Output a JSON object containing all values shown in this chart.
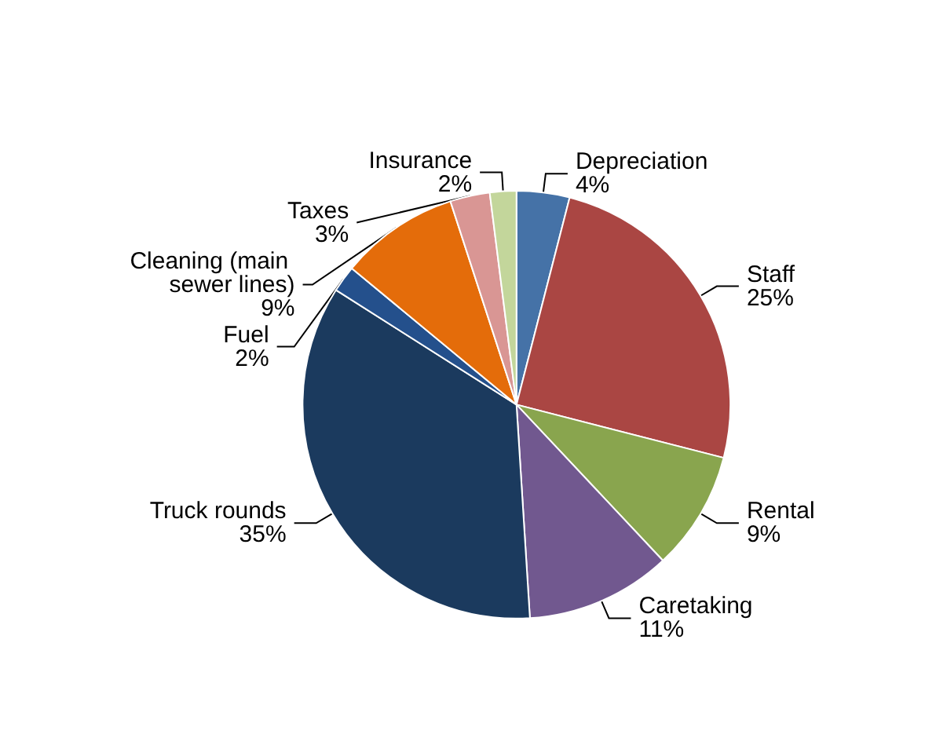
{
  "chart_data": {
    "type": "pie",
    "categories": [
      "Depreciation",
      "Staff",
      "Rental",
      "Caretaking",
      "Truck rounds",
      "Fuel",
      "Cleaning (main sewer lines)",
      "Taxes",
      "Insurance"
    ],
    "values": [
      4,
      25,
      9,
      11,
      35,
      2,
      9,
      3,
      2
    ],
    "value_labels": [
      "4%",
      "25%",
      "9%",
      "11%",
      "35%",
      "2%",
      "9%",
      "3%",
      "2%"
    ],
    "colors": [
      "#4572a7",
      "#aa4643",
      "#89a54e",
      "#71588f",
      "#1b3a5e",
      "#24508c",
      "#e46c0a",
      "#d99694",
      "#c3d69b"
    ],
    "legend": false
  }
}
